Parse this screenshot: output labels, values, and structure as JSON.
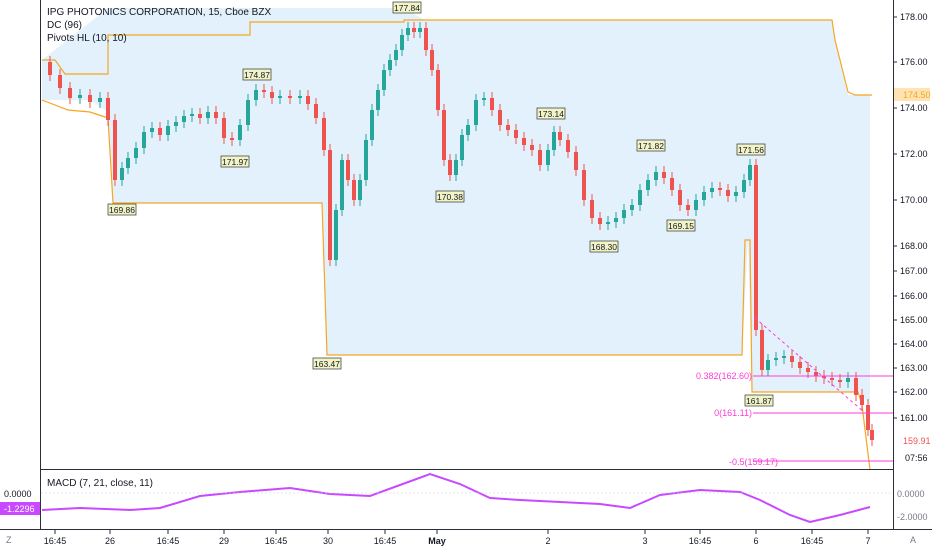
{
  "legend": {
    "title": "IPG PHOTONICS CORPORATION, 15, Cboe BZX",
    "dc": "DC (96)",
    "pivots": "Pivots HL (10, 10)"
  },
  "macd": {
    "label": "MACD (7, 21, close, 11)",
    "ticks": [
      "0.0000",
      "-2.0000"
    ],
    "current": "-1.2296"
  },
  "price_axis": {
    "ticks": [
      "178.00",
      "176.00",
      "174.00",
      "172.00",
      "170.00",
      "168.00",
      "167.00",
      "166.00",
      "165.00",
      "164.00",
      "163.00",
      "162.00",
      "161.00"
    ],
    "dc_label": "174.50",
    "last_price": "159.91",
    "countdown": "07:56"
  },
  "time_axis": {
    "labels": [
      "16:45",
      "26",
      "16:45",
      "29",
      "16:45",
      "30",
      "16:45",
      "May",
      "2",
      "3",
      "16:45",
      "6",
      "16:45",
      "7"
    ]
  },
  "pivots": [
    "174.87",
    "177.84",
    "173.14",
    "171.82",
    "171.56",
    "171.97",
    "169.86",
    "163.47",
    "170.38",
    "168.30",
    "169.15",
    "161.87"
  ],
  "fib": [
    "0.382(162.60)",
    "0(161.11)",
    "-0.5(159.17)"
  ],
  "corner": {
    "left": "Z",
    "right": "A"
  },
  "colors": {
    "up": "#26a69a",
    "down": "#ef5350",
    "dc_line": "#f5a623",
    "dc_fill": "#e3f1fc",
    "macd": "#c849ff",
    "fib": "#ff3ad8",
    "pivot_bg": "#f2f4c7"
  },
  "chart_data": {
    "type": "line",
    "title": "IPG PHOTONICS CORPORATION, 15, Cboe BZX",
    "x": [
      "16:45",
      "26",
      "16:45",
      "29",
      "16:45",
      "30",
      "16:45",
      "May",
      "2",
      "3",
      "16:45",
      "6",
      "16:45",
      "7"
    ],
    "series": [
      {
        "name": "DC (96)",
        "values": [
          174.5,
          169.86,
          169.86,
          169.86,
          169.86,
          163.47,
          163.47,
          177.84,
          177.84,
          177.84,
          177.84,
          161.87,
          161.87,
          159.5
        ]
      },
      {
        "name": "MACD (7, 21, close, 11)",
        "values": [
          -0.9,
          -1.3,
          -1.2,
          0.3,
          0.2,
          0.5,
          0.5,
          2.1,
          0.2,
          -1.0,
          0.4,
          0.3,
          -1.3,
          -1.2
        ]
      }
    ],
    "ylim": [
      159,
      178.5
    ]
  }
}
